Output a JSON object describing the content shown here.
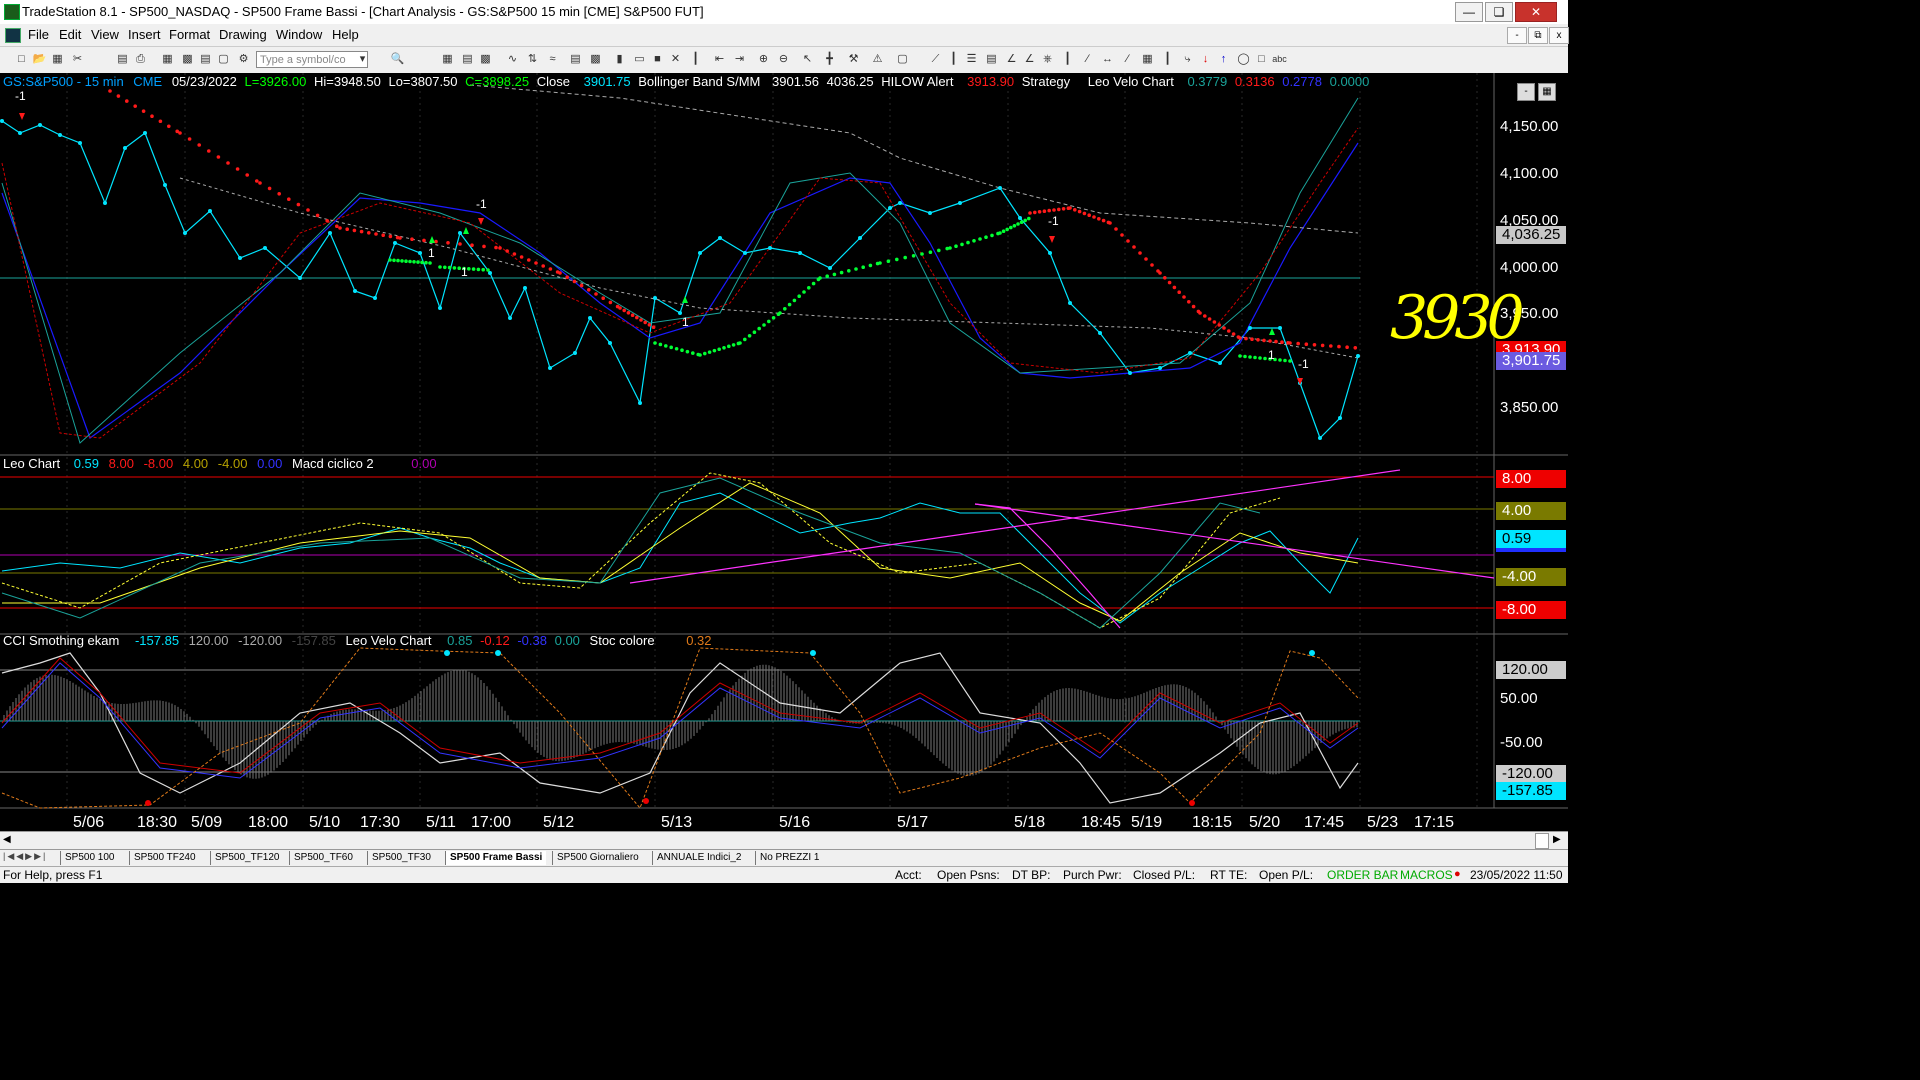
{
  "window": {
    "title": "TradeStation 8.1 - SP500_NASDAQ - SP500 Frame Bassi - [Chart Analysis - GS:S&P500  15 min  [CME] S&P500 FUT]",
    "min": "—",
    "max": "❏",
    "close": "✕"
  },
  "menu": [
    "File",
    "Edit",
    "View",
    "Insert",
    "Format",
    "Drawing",
    "Window",
    "Help"
  ],
  "mdi": {
    "min": "-",
    "restore": "⧉",
    "close": "x"
  },
  "toolbar": {
    "symbol_placeholder": "Type a symbol/co"
  },
  "header": {
    "symbol": "GS:S&P500 - 15 min",
    "exchange": "CME",
    "date": "05/23/2022",
    "last": "L=3926.00",
    "hi": "Hi=3948.50",
    "lo": "Lo=3807.50",
    "close_c": "C=3898.25",
    "close_lbl": "Close",
    "close_val": "3901.75",
    "bb_lbl": "Bollinger Band S/MM",
    "bb_v1": "3901.56",
    "bb_v2": "4036.25",
    "hilow_lbl": "HILOW Alert",
    "hilow_val": "3913.90",
    "strategy_lbl": "Strategy",
    "leovelo_lbl": "Leo Velo Chart",
    "lv1": "0.3779",
    "lv2": "0.3136",
    "lv3": "0.2778",
    "lv4": "0.0000"
  },
  "sub1": {
    "leo_lbl": "Leo Chart",
    "v1": "0.59",
    "v2": "8.00",
    "v3": "-8.00",
    "v4": "4.00",
    "v5": "-4.00",
    "v6": "0.00",
    "macd_lbl": "Macd ciclico 2",
    "macd_val": "0.00"
  },
  "sub2": {
    "cci_lbl": "CCI Smothing ekam",
    "c1": "-157.85",
    "c2": "120.00",
    "c3": "-120.00",
    "c4": "-157.85",
    "leovelo_lbl": "Leo Velo Chart",
    "l1": "0.85",
    "l2": "-0.12",
    "l3": "-0.38",
    "l4": "0.00",
    "stoc_lbl": "Stoc colore",
    "stoc_val": "0.32"
  },
  "price_axis": [
    "4,150.00",
    "4,100.00",
    "4,050.00",
    "4,000.00",
    "3,950.00",
    "3,850.00"
  ],
  "price_boxes": {
    "bb_upper": "4,036.25",
    "hilow": "3,913.90",
    "last": "3,901.75"
  },
  "sub1_axis": [
    "8.00",
    "4.00",
    "0.59",
    "-4.00",
    "-8.00"
  ],
  "sub2_axis": [
    "120.00",
    "50.00",
    "-50.00",
    "-120.00",
    "-157.85"
  ],
  "time_axis": [
    "5/06",
    "18:30",
    "5/09",
    "18:00",
    "5/10",
    "17:30",
    "5/11",
    "17:00",
    "5/12",
    "5/13",
    "5/16",
    "5/17",
    "5/18",
    "18:45",
    "5/19",
    "18:15",
    "5/20",
    "17:45",
    "5/23",
    "17:15"
  ],
  "annotation": "3930",
  "signals": {
    "sell": "-1",
    "buy": "1"
  },
  "tabs": [
    "SP500 100",
    "SP500 TF240",
    "SP500_TF120",
    "SP500_TF60",
    "SP500_TF30",
    "SP500 Frame Bassi",
    "SP500 Giornaliero",
    "ANNUALE Indici_2",
    "No PREZZI 1"
  ],
  "status": {
    "help": "For Help, press F1",
    "acct": "Acct:",
    "open_psns": "Open Psns:",
    "dt_bp": "DT BP:",
    "purch_pwr": "Purch Pwr:",
    "closed_pl": "Closed P/L:",
    "rt_te": "RT TE:",
    "open_pl": "Open P/L:",
    "order_bar": "ORDER BAR",
    "macros": "MACROS",
    "datetime": "23/05/2022 11:50"
  },
  "colors": {
    "price": "#00e5ff",
    "up": "#00ff33",
    "down": "#ff1a1a",
    "bb": "#1a1aff",
    "teal": "#1aa39a",
    "magenta": "#ff33ff",
    "yellow": "#ffff33",
    "annot": "#ffff00"
  }
}
